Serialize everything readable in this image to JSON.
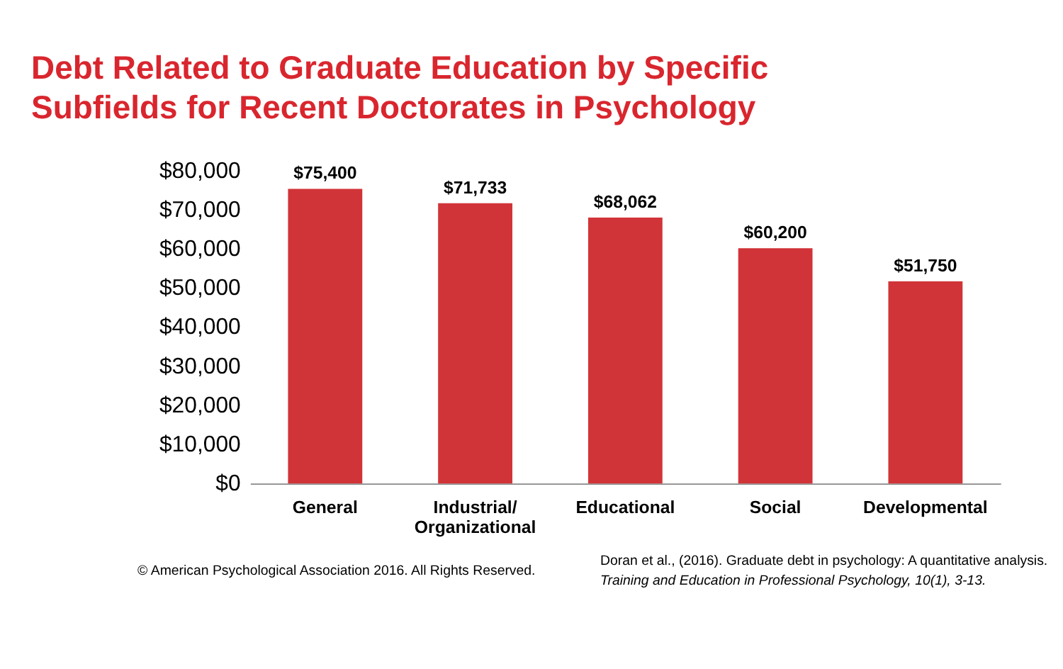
{
  "chart_data": {
    "type": "bar",
    "title": [
      "Debt Related to Graduate Education by Specific",
      "Subfields for Recent Doctorates in Psychology"
    ],
    "categories": [
      "General",
      "Industrial/ Organizational",
      "Educational",
      "Social",
      "Developmental"
    ],
    "values": [
      75400,
      71733,
      68062,
      60200,
      51750
    ],
    "value_labels": [
      "$75,400",
      "$71,733",
      "$68,062",
      "$60,200",
      "$51,750"
    ],
    "color": "#d13438",
    "ylim": [
      0,
      80000
    ],
    "yticks": [
      {
        "value": 0,
        "label": "$0"
      },
      {
        "value": 10000,
        "label": "$10,000"
      },
      {
        "value": 20000,
        "label": "$20,000"
      },
      {
        "value": 30000,
        "label": "$30,000"
      },
      {
        "value": 40000,
        "label": "$40,000"
      },
      {
        "value": 50000,
        "label": "$50,000"
      },
      {
        "value": 60000,
        "label": "$60,000"
      },
      {
        "value": 70000,
        "label": "$70,000"
      },
      {
        "value": 80000,
        "label": "$80,000"
      }
    ],
    "grid": false,
    "annotations": [
      "© American Psychological Association 2016. All Rights Reserved.",
      "Doran et al., (2016). Graduate debt in psychology: A quantitative analysis.",
      "Training and Education in Professional Psychology, 10(1), 3-13."
    ]
  }
}
